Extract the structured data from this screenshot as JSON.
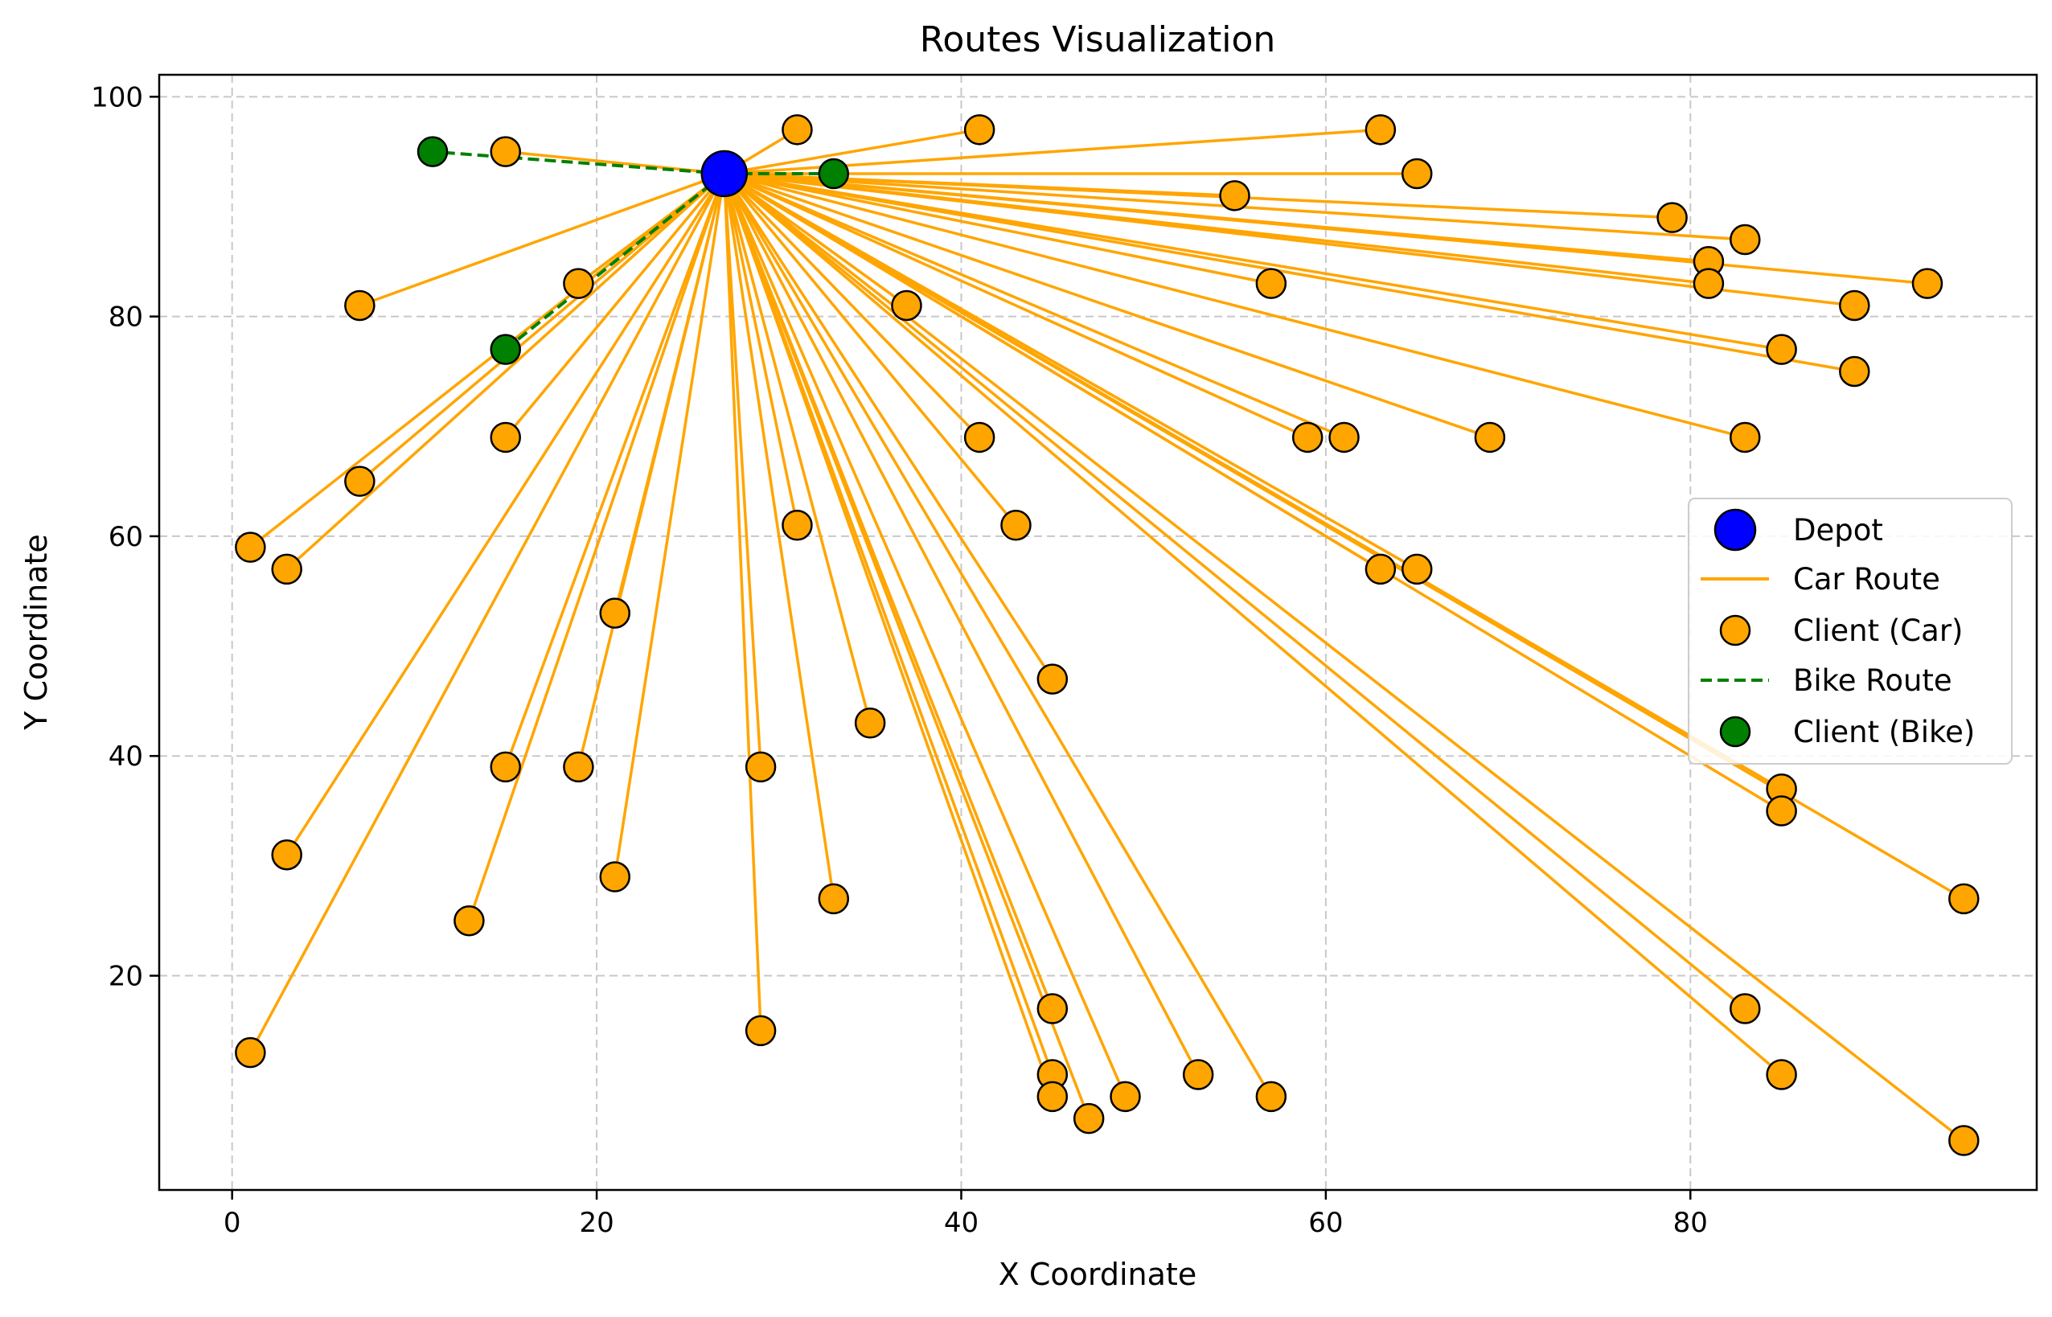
{
  "chart_data": {
    "type": "scatter",
    "title": "Routes Visualization",
    "xlabel": "X Coordinate",
    "ylabel": "Y Coordinate",
    "xlim": [
      -4,
      99
    ],
    "ylim": [
      0.5,
      102
    ],
    "xticks": [
      0,
      20,
      40,
      60,
      80
    ],
    "yticks": [
      20,
      40,
      60,
      80,
      100
    ],
    "grid": true,
    "legend_position": "center-right",
    "colors": {
      "depot": "#0000ff",
      "car": "#ffa500",
      "bike": "#008000",
      "grid": "#c8c8c8"
    },
    "depot": {
      "name": "Depot",
      "x": 27,
      "y": 93
    },
    "car_route": {
      "name": "Car Route",
      "style": "solid",
      "hub": [
        27,
        93
      ]
    },
    "bike_route": {
      "name": "Bike Route",
      "style": "dashed",
      "paths": [
        [
          [
            27,
            93
          ],
          [
            11,
            95
          ]
        ],
        [
          [
            27,
            93
          ],
          [
            15,
            77
          ]
        ],
        [
          [
            27,
            93
          ],
          [
            33,
            93
          ]
        ]
      ]
    },
    "series": [
      {
        "name": "Client (Car)",
        "points": [
          [
            15,
            95
          ],
          [
            31,
            97
          ],
          [
            41,
            97
          ],
          [
            63,
            97
          ],
          [
            65,
            93
          ],
          [
            55,
            91
          ],
          [
            79,
            89
          ],
          [
            83,
            87
          ],
          [
            81,
            85
          ],
          [
            81,
            83
          ],
          [
            93,
            83
          ],
          [
            57,
            83
          ],
          [
            89,
            81
          ],
          [
            85,
            77
          ],
          [
            89,
            75
          ],
          [
            7,
            81
          ],
          [
            19,
            83
          ],
          [
            37,
            81
          ],
          [
            59,
            69
          ],
          [
            61,
            69
          ],
          [
            69,
            69
          ],
          [
            83,
            69
          ],
          [
            41,
            69
          ],
          [
            43,
            61
          ],
          [
            63,
            57
          ],
          [
            65,
            57
          ],
          [
            15,
            69
          ],
          [
            7,
            65
          ],
          [
            1,
            59
          ],
          [
            3,
            57
          ],
          [
            31,
            61
          ],
          [
            21,
            53
          ],
          [
            45,
            47
          ],
          [
            35,
            43
          ],
          [
            29,
            39
          ],
          [
            19,
            39
          ],
          [
            15,
            39
          ],
          [
            3,
            31
          ],
          [
            21,
            29
          ],
          [
            13,
            25
          ],
          [
            33,
            27
          ],
          [
            85,
            37
          ],
          [
            85,
            35
          ],
          [
            95,
            27
          ],
          [
            1,
            13
          ],
          [
            29,
            15
          ],
          [
            45,
            17
          ],
          [
            45,
            11
          ],
          [
            45,
            9
          ],
          [
            47,
            7
          ],
          [
            49,
            9
          ],
          [
            53,
            11
          ],
          [
            57,
            9
          ],
          [
            83,
            17
          ],
          [
            85,
            11
          ],
          [
            95,
            5
          ]
        ]
      },
      {
        "name": "Client (Bike)",
        "points": [
          [
            11,
            95
          ],
          [
            15,
            77
          ],
          [
            33,
            93
          ]
        ]
      }
    ],
    "legend": [
      "Depot",
      "Car Route",
      "Client (Car)",
      "Bike Route",
      "Client (Bike)"
    ]
  }
}
